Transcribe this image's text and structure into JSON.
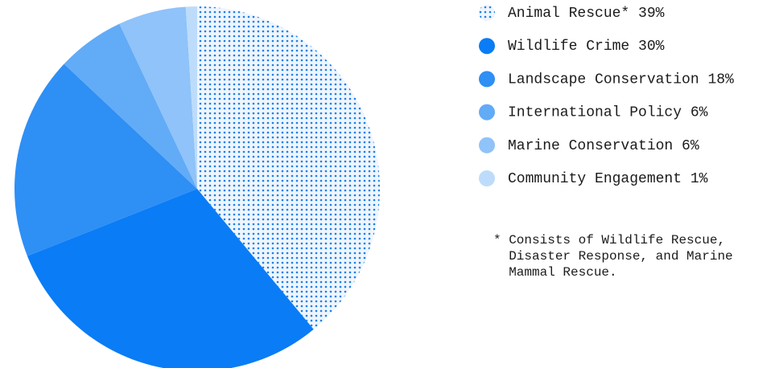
{
  "chart_data": {
    "type": "pie",
    "categories": [
      "Animal Rescue*",
      "Wildlife Crime",
      "Landscape Conservation",
      "International Policy",
      "Marine Conservation",
      "Community Engagement"
    ],
    "values": [
      39,
      30,
      18,
      6,
      6,
      1
    ],
    "value_labels": [
      "39%",
      "30%",
      "18%",
      "6%",
      "6%",
      "1%"
    ],
    "colors": [
      "#1a7fe8",
      "#0a7cf5",
      "#2e8ff5",
      "#62abf7",
      "#8fc3f9",
      "#bddcfb"
    ],
    "annotation": "* Consists of Wildlife Rescue, Disaster Response, and Marine Mammal Rescue."
  }
}
